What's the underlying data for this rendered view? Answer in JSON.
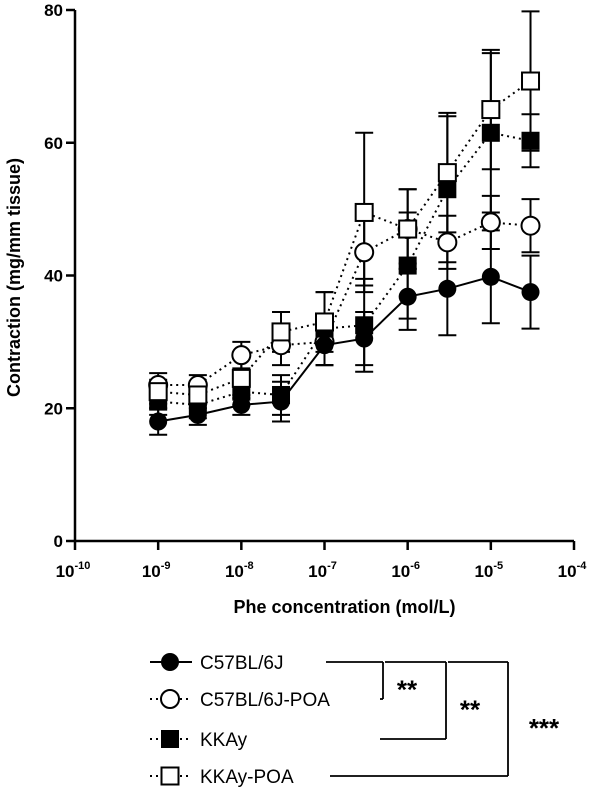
{
  "chart_data": {
    "type": "line",
    "xlabel": "Phe concentration (mol/L)",
    "ylabel": "Contraction (mg/mm tissue)",
    "x_scale": "log",
    "xlim": [
      1e-10,
      0.0001
    ],
    "ylim": [
      0,
      80
    ],
    "x_ticks": [
      {
        "base": "10",
        "exp": "-10"
      },
      {
        "base": "10",
        "exp": "-9"
      },
      {
        "base": "10",
        "exp": "-8"
      },
      {
        "base": "10",
        "exp": "-7"
      },
      {
        "base": "10",
        "exp": "-6"
      },
      {
        "base": "10",
        "exp": "-5"
      },
      {
        "base": "10",
        "exp": "-4"
      }
    ],
    "y_ticks": [
      "0",
      "20",
      "40",
      "60",
      "80"
    ],
    "x": [
      1e-09,
      3e-09,
      1e-08,
      3e-08,
      1e-07,
      3e-07,
      1e-06,
      3e-06,
      1e-05,
      3e-05
    ],
    "series": [
      {
        "name": "C57BL/6J",
        "marker": "filled-circle",
        "line": "solid",
        "values": [
          18,
          19,
          20.5,
          21,
          29.5,
          30.5,
          36.8,
          38,
          39.8,
          37.5
        ],
        "errors": [
          2,
          1.5,
          1.5,
          3,
          3,
          4,
          5,
          7,
          7,
          5.5
        ]
      },
      {
        "name": "C57BL/6J-POA",
        "marker": "open-circle",
        "line": "dotted",
        "values": [
          23.5,
          23.5,
          28,
          29.5,
          30,
          43.5,
          47,
          45,
          48,
          47.5
        ],
        "errors": [
          1.8,
          1.5,
          2,
          3,
          3.5,
          5,
          6,
          4,
          4,
          4
        ]
      },
      {
        "name": "KKAy",
        "marker": "filled-square",
        "line": "dotted",
        "values": [
          21,
          20.5,
          22.5,
          22,
          32,
          32.5,
          41.5,
          53,
          61.5,
          60.3
        ],
        "errors": [
          2,
          2,
          2,
          3,
          5.5,
          7,
          8,
          11,
          12,
          4
        ]
      },
      {
        "name": "KKAy-POA",
        "marker": "open-square",
        "line": "dotted",
        "values": [
          22.5,
          22,
          24.5,
          31.5,
          33,
          49.5,
          47,
          55.5,
          65,
          69.3
        ],
        "errors": [
          1.8,
          2,
          3,
          3,
          4.5,
          12,
          6,
          9,
          9,
          10.5
        ]
      }
    ],
    "significance": [
      {
        "label": "**",
        "between": [
          "C57BL/6J",
          "C57BL/6J-POA"
        ]
      },
      {
        "label": "**",
        "between": [
          "C57BL/6J",
          "KKAy"
        ]
      },
      {
        "label": "***",
        "between": [
          "C57BL/6J",
          "KKAy-POA"
        ]
      }
    ],
    "legend": "below"
  }
}
